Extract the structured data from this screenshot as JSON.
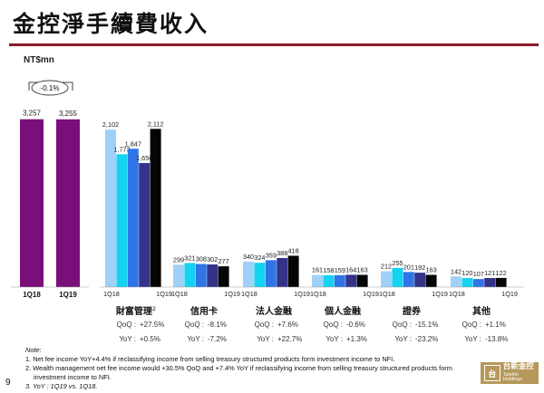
{
  "page": {
    "title": "金控淨手續費收入",
    "unit": "NT$mn",
    "page_number": "9"
  },
  "chart_data": [
    {
      "type": "bar",
      "categories": [
        "1Q18",
        "1Q19"
      ],
      "values": [
        3257,
        3255
      ],
      "value_labels": [
        "3,257",
        "3,255"
      ],
      "color": "#7a0f7a",
      "annotation": "-0.1%"
    },
    {
      "type": "bar",
      "period_labels": [
        "1Q18",
        "1Q19"
      ],
      "colors": [
        "#9fd0f7",
        "#14d2f0",
        "#2f75e6",
        "#33338a",
        "#050505"
      ],
      "groups": [
        {
          "name": "財富管理",
          "superscript": "2",
          "values": [
            2102,
            1773,
            1847,
            1656,
            2112
          ],
          "value_labels": [
            "2,102",
            "1,773",
            "1,847",
            "1,656",
            "2,112"
          ],
          "qoq": "+27.5%",
          "yoy": "+0.5%"
        },
        {
          "name": "信用卡",
          "values": [
            299,
            321,
            308,
            302,
            277
          ],
          "value_labels": [
            "299",
            "321",
            "308",
            "302",
            "277"
          ],
          "qoq": "-8.1%",
          "yoy": "-7.2%"
        },
        {
          "name": "法人金融",
          "values": [
            340,
            324,
            359,
            388,
            418
          ],
          "value_labels": [
            "340",
            "324",
            "359",
            "388",
            "418"
          ],
          "qoq": "+7.6%",
          "yoy": "+22.7%"
        },
        {
          "name": "個人金融",
          "values": [
            161,
            158,
            159,
            164,
            163
          ],
          "value_labels": [
            "161",
            "158",
            "159",
            "164",
            "163"
          ],
          "qoq": "-0.6%",
          "yoy": "+1.3%"
        },
        {
          "name": "證券",
          "values": [
            212,
            255,
            201,
            192,
            163
          ],
          "value_labels": [
            "212",
            "255",
            "201",
            "192",
            "163"
          ],
          "qoq": "-15.1%",
          "yoy": "-23.2%"
        },
        {
          "name": "其他",
          "values": [
            142,
            120,
            107,
            121,
            122
          ],
          "value_labels": [
            "142",
            "120",
            "107",
            "121",
            "122"
          ],
          "qoq": "+1.1%",
          "yoy": "-13.8%"
        }
      ],
      "qoq_prefix": "QoQ :",
      "yoy_prefix": "YoY :"
    }
  ],
  "notes": {
    "header": "Note:",
    "lines": [
      "1. Net fee income YoY+4.4% if reclassifying income from selling treasury structured products form investment income to NFI.",
      "2. Wealth management net fee income would +30.5% QoQ and +7.4% YoY if reclassifying income from selling treasury structured products form investment income to NFI.",
      "3. YoY : 1Q19 vs. 1Q18."
    ]
  },
  "logo": {
    "mark": "台",
    "name": "台新金控",
    "sub": "Taishin Holdings",
    "color": "#b5985a"
  }
}
